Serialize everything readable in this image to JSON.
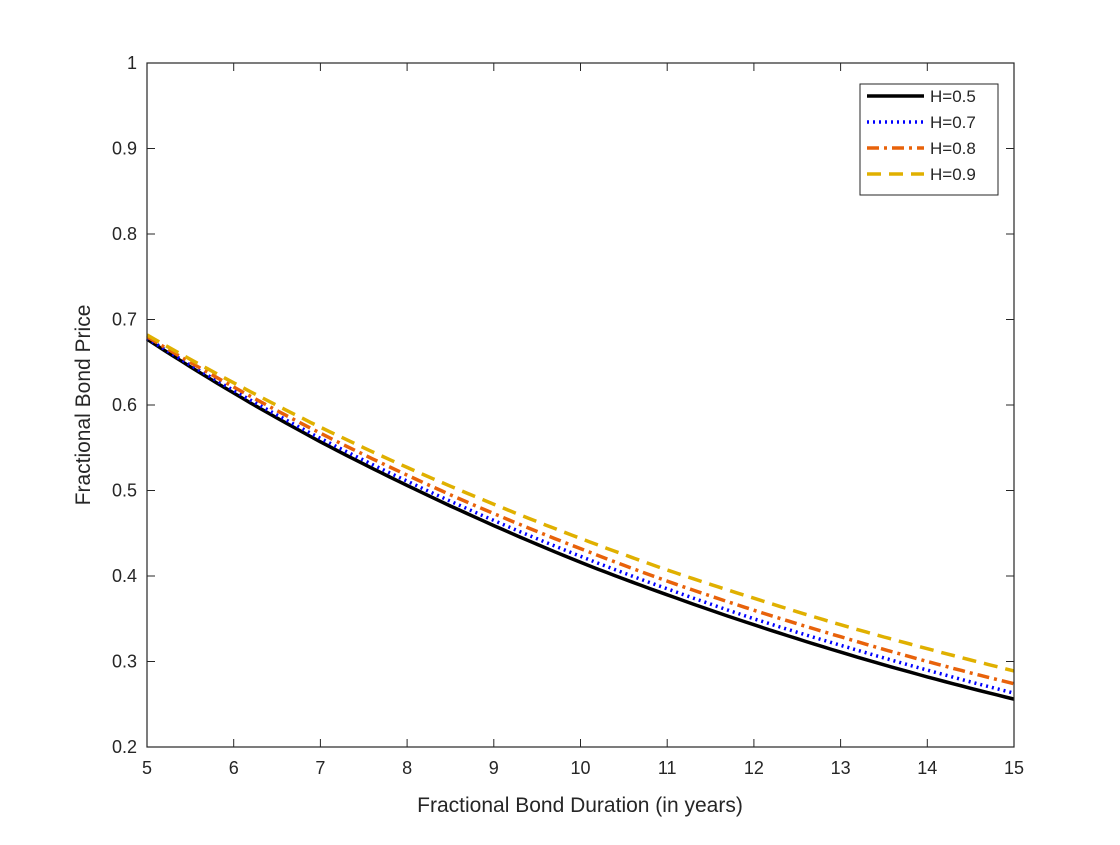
{
  "chart_data": {
    "type": "line",
    "title": "",
    "xlabel": "Fractional Bond Duration (in years)",
    "ylabel": "Fractional Bond Price",
    "xlim": [
      5,
      15
    ],
    "ylim": [
      0.2,
      1
    ],
    "xticks": [
      "5",
      "6",
      "7",
      "8",
      "9",
      "10",
      "11",
      "12",
      "13",
      "14",
      "15"
    ],
    "yticks": [
      "0.2",
      "0.3",
      "0.4",
      "0.5",
      "0.6",
      "0.7",
      "0.8",
      "0.9",
      "1"
    ],
    "grid": false,
    "legend_position": "top-right",
    "x": [
      5,
      6,
      7,
      8,
      9,
      10,
      11,
      12,
      13,
      14,
      15
    ],
    "series": [
      {
        "name": "H=0.5",
        "color": "#000000",
        "style": "solid",
        "values": [
          0.677,
          0.614,
          0.557,
          0.506,
          0.459,
          0.416,
          0.378,
          0.343,
          0.311,
          0.282,
          0.256
        ]
      },
      {
        "name": "H=0.7",
        "color": "#0000ff",
        "style": "dotted",
        "values": [
          0.678,
          0.617,
          0.561,
          0.511,
          0.465,
          0.423,
          0.385,
          0.35,
          0.319,
          0.29,
          0.263
        ]
      },
      {
        "name": "H=0.8",
        "color": "#e8620a",
        "style": "dashdot",
        "values": [
          0.68,
          0.621,
          0.567,
          0.518,
          0.473,
          0.432,
          0.394,
          0.36,
          0.329,
          0.3,
          0.274
        ]
      },
      {
        "name": "H=0.9",
        "color": "#e0b000",
        "style": "dashed",
        "values": [
          0.682,
          0.626,
          0.574,
          0.527,
          0.484,
          0.444,
          0.407,
          0.374,
          0.343,
          0.315,
          0.289
        ]
      }
    ]
  }
}
